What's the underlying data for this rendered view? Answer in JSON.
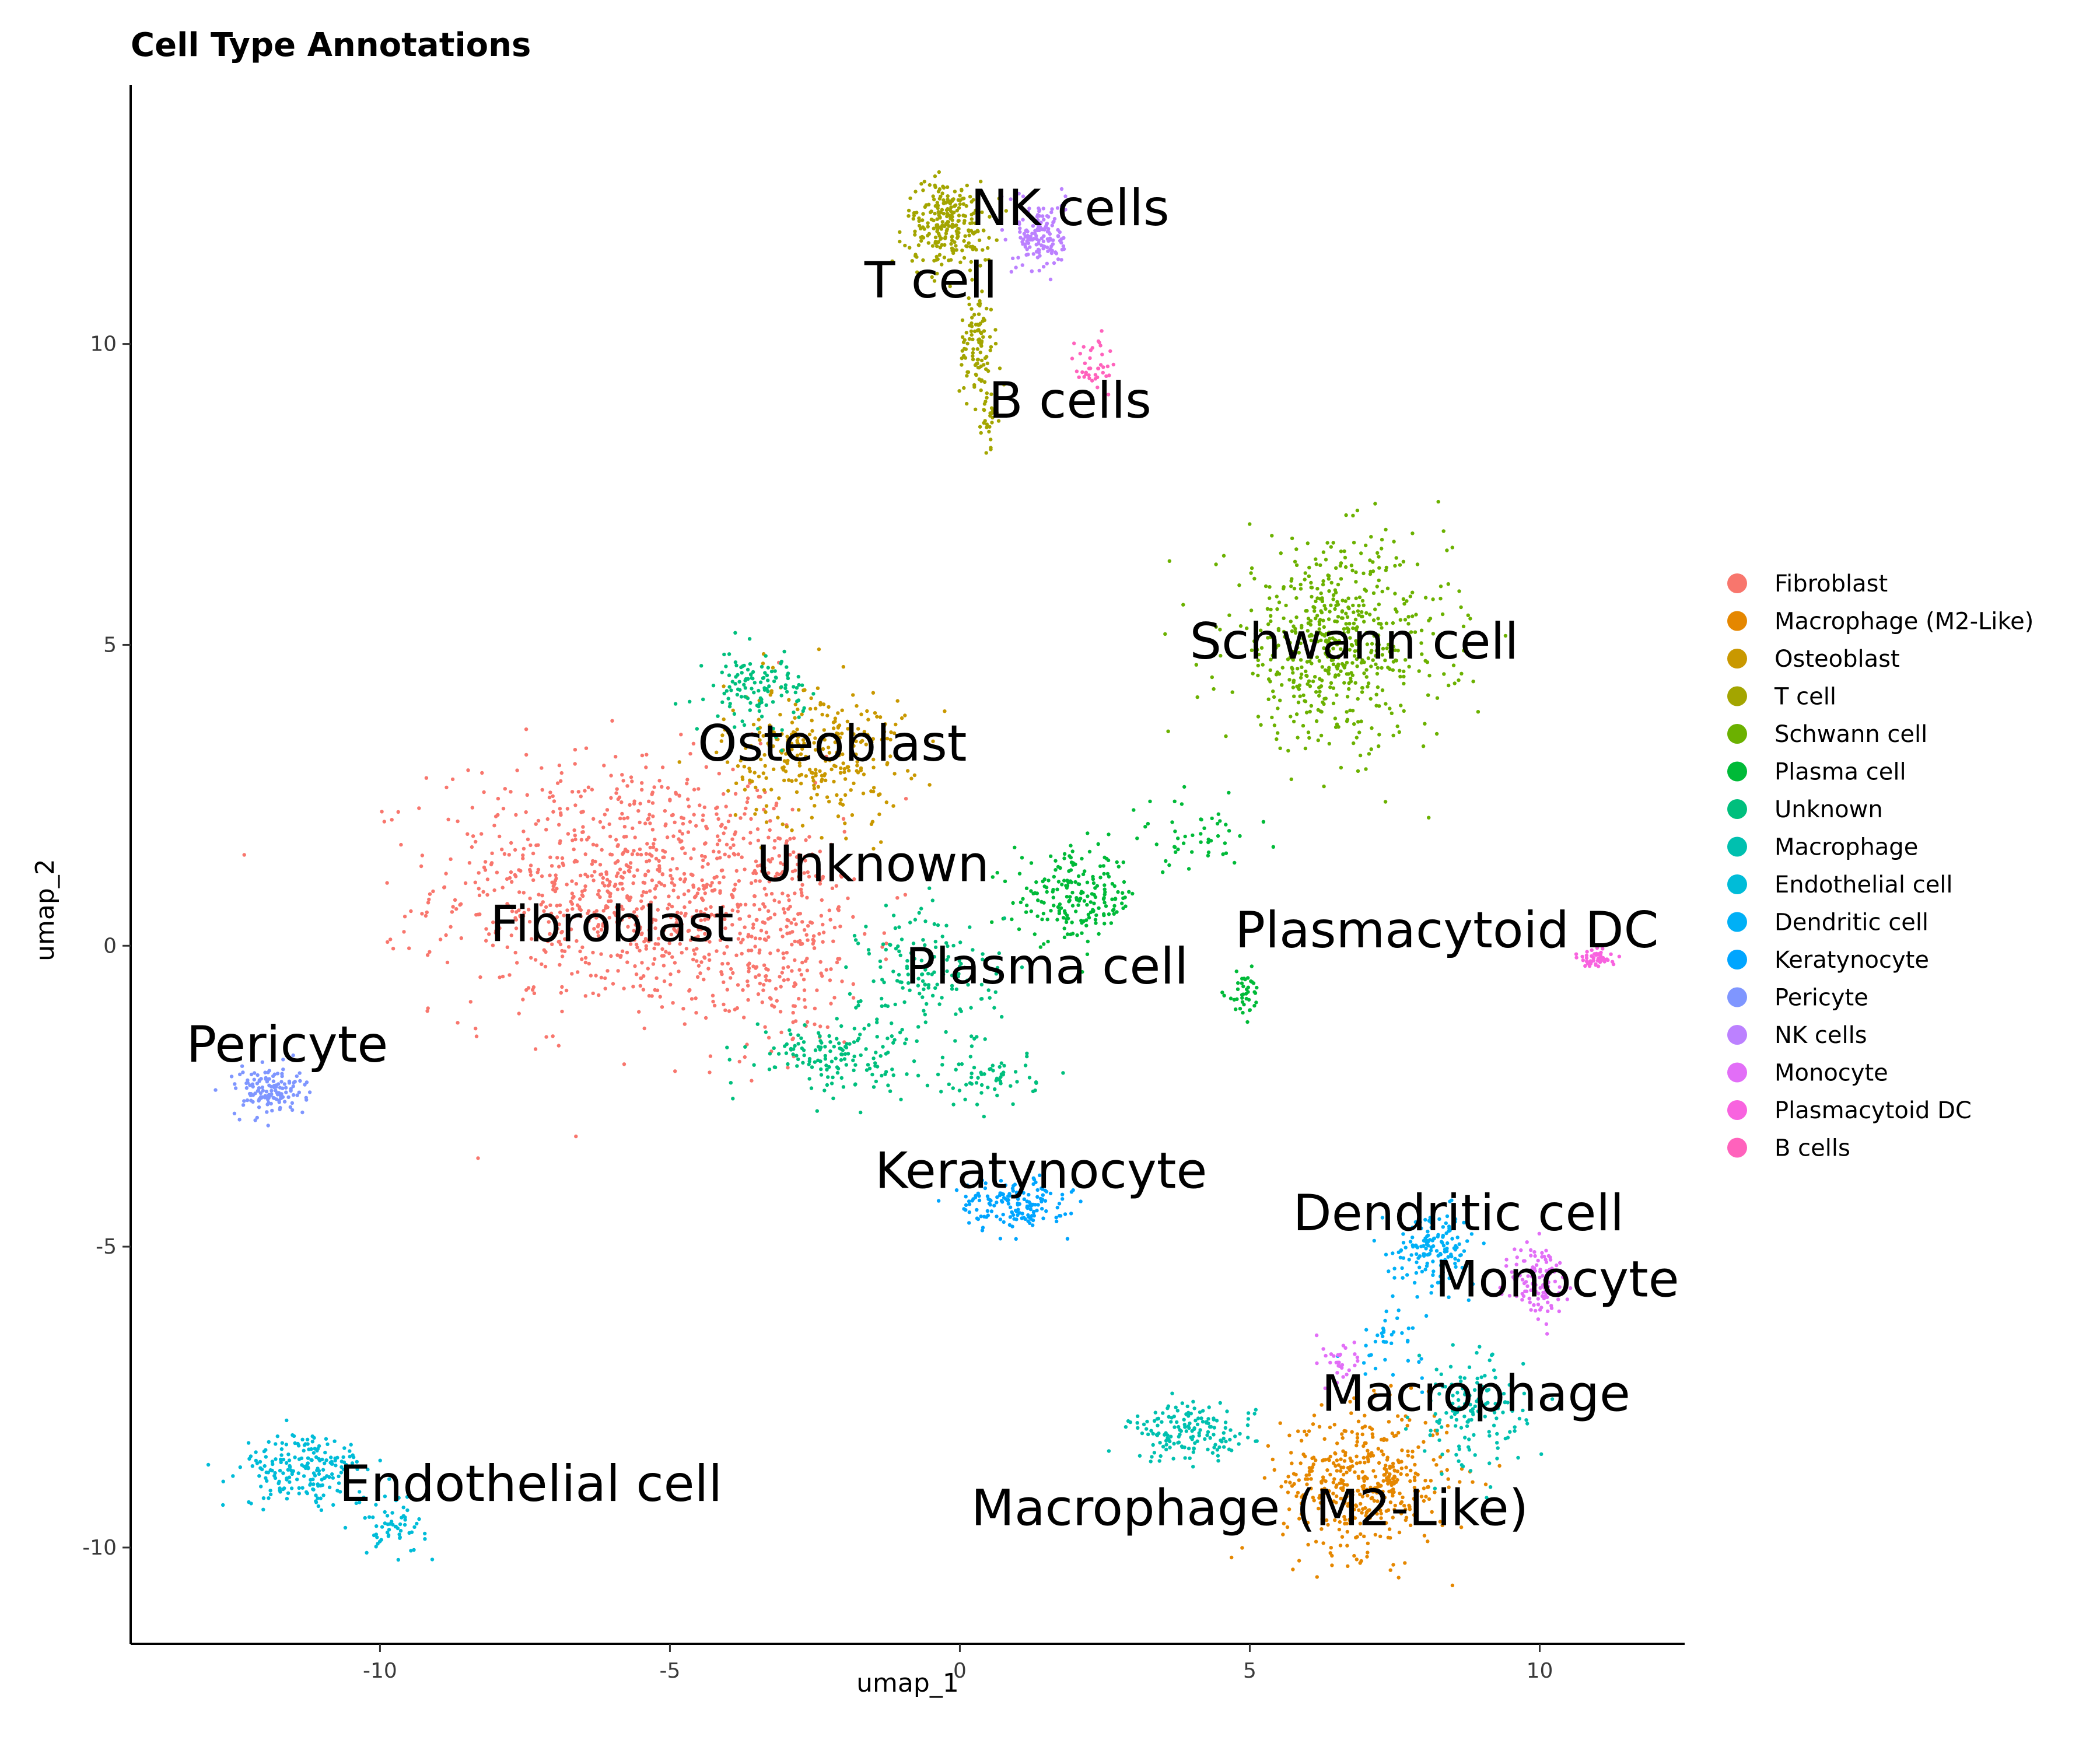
{
  "chart_data": {
    "type": "scatter",
    "title": "Cell Type Annotations",
    "xlabel": "umap_1",
    "ylabel": "umap_2",
    "xlim": [
      -14.3,
      12.5
    ],
    "ylim": [
      -11.6,
      14.3
    ],
    "xticks": [
      -10,
      -5,
      0,
      5,
      10
    ],
    "yticks": [
      -10,
      -5,
      0,
      5,
      10
    ],
    "xtick_labels": [
      "-10",
      "-5",
      "0",
      "5",
      "10"
    ],
    "ytick_labels": [
      "-10",
      "-5",
      "0",
      "5",
      "10"
    ],
    "grid": false,
    "legend_position": "right",
    "series": [
      {
        "name": "Fibroblast",
        "color": "#F8766D",
        "label": "Fibroblast",
        "label_at": [
          -6.0,
          0.3
        ],
        "regions": [
          {
            "center": [
              -5.8,
              1.0
            ],
            "spread": [
              2.7,
              1.8
            ],
            "n": 900
          },
          {
            "center": [
              -3.2,
              0.2
            ],
            "spread": [
              1.4,
              1.6
            ],
            "n": 300
          }
        ]
      },
      {
        "name": "Macrophage (M2-Like)",
        "color": "#E58700",
        "label": "Macrophage (M2-Like)",
        "label_at": [
          5.0,
          -9.4
        ],
        "regions": [
          {
            "center": [
              7.0,
              -8.9
            ],
            "spread": [
              1.2,
              1.0
            ],
            "n": 450
          }
        ]
      },
      {
        "name": "Osteoblast",
        "color": "#C99800",
        "label": "Osteoblast",
        "label_at": [
          -2.2,
          3.3
        ],
        "regions": [
          {
            "center": [
              -2.5,
              3.2
            ],
            "spread": [
              1.3,
              1.0
            ],
            "n": 300
          }
        ]
      },
      {
        "name": "T cell",
        "color": "#A3A500",
        "label": "T cell",
        "label_at": [
          -0.5,
          11.0
        ],
        "regions": [
          {
            "center": [
              -0.2,
              12.0
            ],
            "spread": [
              0.6,
              0.6
            ],
            "n": 250
          },
          {
            "center": [
              0.3,
              10.0
            ],
            "spread": [
              0.25,
              0.8
            ],
            "n": 100
          },
          {
            "center": [
              0.5,
              8.8
            ],
            "spread": [
              0.12,
              0.4
            ],
            "n": 30
          }
        ]
      },
      {
        "name": "Schwann cell",
        "color": "#6BB100",
        "label": "Schwann cell",
        "label_at": [
          6.8,
          5.0
        ],
        "regions": [
          {
            "center": [
              6.5,
              5.0
            ],
            "spread": [
              1.6,
              1.4
            ],
            "n": 600
          }
        ]
      },
      {
        "name": "Plasma cell",
        "color": "#00BA38",
        "label": "Plasma cell",
        "label_at": [
          1.5,
          -0.4
        ],
        "regions": [
          {
            "center": [
              2.0,
              0.8
            ],
            "spread": [
              0.9,
              0.6
            ],
            "n": 200
          },
          {
            "center": [
              4.9,
              -0.8
            ],
            "spread": [
              0.25,
              0.3
            ],
            "n": 40
          },
          {
            "center": [
              4.0,
              1.8
            ],
            "spread": [
              0.9,
              0.5
            ],
            "n": 50
          }
        ]
      },
      {
        "name": "Unknown",
        "color": "#00BF7D",
        "label": "Unknown",
        "label_at": [
          -1.5,
          1.3
        ],
        "regions": [
          {
            "center": [
              -3.5,
              4.3
            ],
            "spread": [
              0.7,
              0.5
            ],
            "n": 120
          },
          {
            "center": [
              -2.2,
              -1.8
            ],
            "spread": [
              1.2,
              0.5
            ],
            "n": 150
          },
          {
            "center": [
              -0.5,
              -0.5
            ],
            "spread": [
              1.0,
              1.0
            ],
            "n": 150
          },
          {
            "center": [
              0.5,
              -2.2
            ],
            "spread": [
              0.7,
              0.4
            ],
            "n": 60
          }
        ]
      },
      {
        "name": "Macrophage",
        "color": "#00C0AF",
        "label": "Macrophage",
        "label_at": [
          8.9,
          -7.5
        ],
        "regions": [
          {
            "center": [
              4.0,
              -8.1
            ],
            "spread": [
              0.9,
              0.4
            ],
            "n": 160
          },
          {
            "center": [
              8.8,
              -7.8
            ],
            "spread": [
              0.8,
              0.8
            ],
            "n": 140
          }
        ]
      },
      {
        "name": "Endothelial cell",
        "color": "#00BCD8",
        "label": "Endothelial cell",
        "label_at": [
          -7.4,
          -9.0
        ],
        "regions": [
          {
            "center": [
              -11.3,
              -8.7
            ],
            "spread": [
              0.9,
              0.5
            ],
            "n": 200
          },
          {
            "center": [
              -9.8,
              -9.6
            ],
            "spread": [
              0.5,
              0.4
            ],
            "n": 60
          }
        ]
      },
      {
        "name": "Dendritic cell",
        "color": "#00B0F6",
        "label": "Dendritic cell",
        "label_at": [
          8.6,
          -4.5
        ],
        "regions": [
          {
            "center": [
              8.2,
              -5.0
            ],
            "spread": [
              0.6,
              0.5
            ],
            "n": 150
          },
          {
            "center": [
              7.4,
              -6.6
            ],
            "spread": [
              0.5,
              0.5
            ],
            "n": 40
          }
        ]
      },
      {
        "name": "Keratynocyte",
        "color": "#00A5FF",
        "label": "Keratynocyte",
        "label_at": [
          1.4,
          -3.8
        ],
        "regions": [
          {
            "center": [
              0.9,
              -4.3
            ],
            "spread": [
              0.8,
              0.35
            ],
            "n": 160
          }
        ]
      },
      {
        "name": "Pericyte",
        "color": "#7F96FF",
        "label": "Pericyte",
        "label_at": [
          -11.6,
          -1.7
        ],
        "regions": [
          {
            "center": [
              -11.9,
              -2.4
            ],
            "spread": [
              0.5,
              0.35
            ],
            "n": 140
          }
        ]
      },
      {
        "name": "NK cells",
        "color": "#BC81FF",
        "label": "NK cells",
        "label_at": [
          1.9,
          12.2
        ],
        "regions": [
          {
            "center": [
              1.4,
              11.8
            ],
            "spread": [
              0.35,
              0.5
            ],
            "n": 150
          }
        ]
      },
      {
        "name": "Monocyte",
        "color": "#E26EF7",
        "label": "Monocyte",
        "label_at": [
          10.3,
          -5.6
        ],
        "regions": [
          {
            "center": [
              10.0,
              -5.6
            ],
            "spread": [
              0.4,
              0.6
            ],
            "n": 120
          },
          {
            "center": [
              6.5,
              -6.9
            ],
            "spread": [
              0.4,
              0.4
            ],
            "n": 30
          }
        ]
      },
      {
        "name": "Plasmacytoid DC",
        "color": "#F863DF",
        "label": "Plasmacytoid DC",
        "label_at": [
          8.4,
          0.2
        ],
        "regions": [
          {
            "center": [
              11.0,
              -0.2
            ],
            "spread": [
              0.25,
              0.12
            ],
            "n": 50
          }
        ]
      },
      {
        "name": "B cells",
        "color": "#FF62BC",
        "label": "B cells",
        "label_at": [
          1.9,
          9.0
        ],
        "regions": [
          {
            "center": [
              2.3,
              9.6
            ],
            "spread": [
              0.25,
              0.5
            ],
            "n": 40
          }
        ]
      }
    ]
  }
}
